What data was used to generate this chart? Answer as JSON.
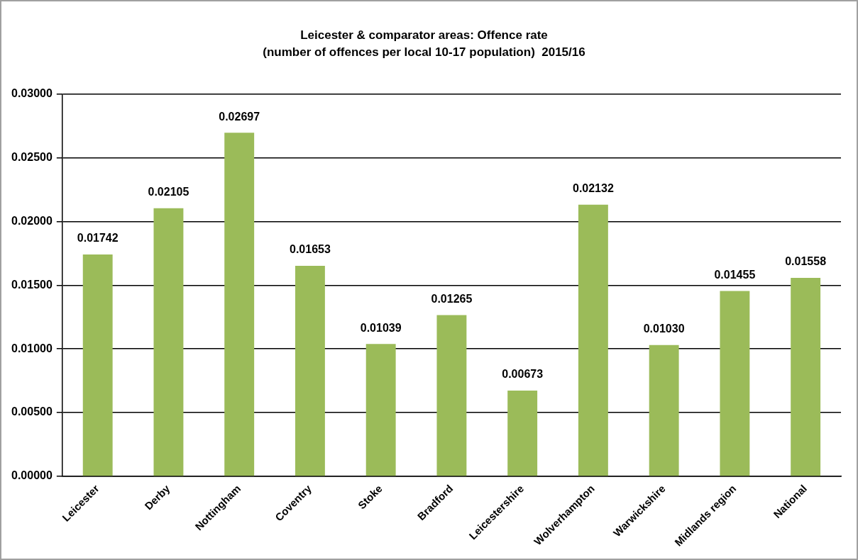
{
  "chart_data": {
    "type": "bar",
    "title": "Leicester & comparator areas: Offence rate",
    "subtitle": "(number of offences per local 10-17 population)  2015/16",
    "categories": [
      "Leicester",
      "Derby",
      "Nottingham",
      "Coventry",
      "Stoke",
      "Bradford",
      "Leicestershire",
      "Wolverhampton",
      "Warwickshire",
      "Midlands region",
      "National"
    ],
    "values": [
      0.01742,
      0.02105,
      0.02697,
      0.01653,
      0.01039,
      0.01265,
      0.00673,
      0.02132,
      0.0103,
      0.01455,
      0.01558
    ],
    "value_labels": [
      "0.01742",
      "0.02105",
      "0.02697",
      "0.01653",
      "0.01039",
      "0.01265",
      "0.00673",
      "0.02132",
      "0.01030",
      "0.01455",
      "0.01558"
    ],
    "color": "#9bbb59",
    "ylim": [
      0,
      0.03
    ],
    "yticks": [
      {
        "value": 0,
        "label": "0.00000"
      },
      {
        "value": 0.005,
        "label": "0.00500"
      },
      {
        "value": 0.01,
        "label": "0.01000"
      },
      {
        "value": 0.015,
        "label": "0.01500"
      },
      {
        "value": 0.02,
        "label": "0.02000"
      },
      {
        "value": 0.025,
        "label": "0.02500"
      },
      {
        "value": 0.03,
        "label": "0.03000"
      }
    ],
    "grid": "y",
    "legend": false
  }
}
